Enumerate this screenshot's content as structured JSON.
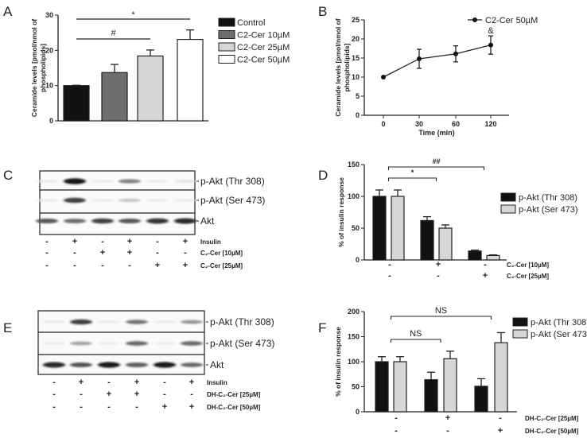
{
  "panel_labels": [
    "A",
    "B",
    "C",
    "D",
    "E",
    "F"
  ],
  "chart_data": [
    {
      "id": "A",
      "type": "bar",
      "ylabel": "Ceramide levels [pmol/nmol of phospholipids]",
      "ylim": [
        0,
        30
      ],
      "yticks": [
        0,
        10,
        20,
        30
      ],
      "categories": [
        "Control",
        "C2-Cer 10µM",
        "C2-Cer 25µM",
        "C2-Cer 50µM"
      ],
      "values": [
        10.0,
        13.7,
        18.4,
        23.1
      ],
      "errors": [
        0.1,
        2.3,
        1.7,
        2.7
      ],
      "colors": [
        "#111111",
        "#6e6e6e",
        "#d6d6d6",
        "#ffffff"
      ],
      "legend": "right",
      "annotations": [
        {
          "text": "*",
          "from": "Control",
          "to": "C2-Cer 50µM"
        },
        {
          "text": "#",
          "from": "Control",
          "to": "C2-Cer 25µM"
        }
      ]
    },
    {
      "id": "B",
      "type": "line",
      "xlabel": "Time (min)",
      "ylabel": "Ceramide levels [pmol/nmol of phospholipids]",
      "ylim": [
        0,
        25
      ],
      "yticks": [
        0,
        5,
        10,
        15,
        20,
        25
      ],
      "xticks": [
        "0",
        "30",
        "60",
        "120"
      ],
      "series": [
        {
          "name": "C2-Cer 50µM",
          "values": [
            10.0,
            14.8,
            16.1,
            18.4
          ],
          "errors": [
            0.1,
            2.5,
            2.1,
            2.4
          ]
        }
      ],
      "legend": "top-right",
      "annotations": [
        {
          "text": "&",
          "at": "120"
        }
      ]
    },
    {
      "id": "D",
      "type": "bar",
      "ylabel": "% of insulin response",
      "ylim": [
        0,
        150
      ],
      "yticks": [
        0,
        50,
        100,
        150
      ],
      "series": [
        {
          "name": "p-Akt (Thr 308)",
          "color": "#111111",
          "values": [
            100,
            62,
            14
          ],
          "errors": [
            10,
            6,
            1.5
          ]
        },
        {
          "name": "p-Akt (Ser 473)",
          "color": "#d6d6d6",
          "values": [
            100,
            50,
            7
          ],
          "errors": [
            10,
            5,
            1
          ]
        }
      ],
      "conditions": [
        {
          "label": "C₂-Cer [10µM]",
          "signs": [
            "-",
            "+",
            "-"
          ]
        },
        {
          "label": "C₂-Cer [25µM]",
          "signs": [
            "-",
            "-",
            "+"
          ]
        }
      ],
      "legend": "right",
      "annotations": [
        {
          "text": "##",
          "from": 0,
          "to": 2
        },
        {
          "text": "*",
          "from": 0,
          "to": 1
        }
      ]
    },
    {
      "id": "F",
      "type": "bar",
      "ylabel": "% of insulin response",
      "ylim": [
        0,
        200
      ],
      "yticks": [
        0,
        50,
        100,
        150,
        200
      ],
      "series": [
        {
          "name": "p-Akt (Thr 308)",
          "color": "#111111",
          "values": [
            100,
            64,
            51
          ],
          "errors": [
            10,
            15,
            15
          ]
        },
        {
          "name": "p-Akt (Ser 473)",
          "color": "#d6d6d6",
          "values": [
            100,
            106,
            138
          ],
          "errors": [
            10,
            15,
            20
          ]
        }
      ],
      "conditions": [
        {
          "label": "DH-C₂-Cer [25µM]",
          "signs": [
            "-",
            "+",
            "-"
          ]
        },
        {
          "label": "DH-C₂-Cer [50µM]",
          "signs": [
            "-",
            "-",
            "+"
          ]
        }
      ],
      "legend": "right",
      "annotations": [
        {
          "text": "NS",
          "from": 0,
          "to": 2
        },
        {
          "text": "NS",
          "from": 0,
          "to": 1
        }
      ]
    }
  ],
  "blots": [
    {
      "id": "C",
      "rows": [
        {
          "label": "p-Akt (Thr 308)",
          "intensity": [
            0.02,
            1.0,
            0.02,
            0.5,
            0.02,
            0.05
          ]
        },
        {
          "label": "p-Akt (Ser 473)",
          "intensity": [
            0.02,
            0.8,
            0.02,
            0.2,
            0.02,
            0.02
          ]
        },
        {
          "label": "Akt",
          "intensity": [
            0.7,
            0.6,
            0.8,
            0.7,
            0.85,
            0.9
          ]
        }
      ],
      "conditions": [
        {
          "label": "Insulin",
          "signs": [
            "-",
            "+",
            "-",
            "+",
            "-",
            "+"
          ]
        },
        {
          "label": "C₂-Cer [10µM]",
          "signs": [
            "-",
            "-",
            "+",
            "+",
            "-",
            "-"
          ]
        },
        {
          "label": "C₂-Cer [25µM]",
          "signs": [
            "-",
            "-",
            "-",
            "-",
            "+",
            "+"
          ]
        }
      ]
    },
    {
      "id": "E",
      "rows": [
        {
          "label": "p-Akt (Thr 308)",
          "intensity": [
            0.02,
            0.8,
            0.02,
            0.55,
            0.02,
            0.4
          ]
        },
        {
          "label": "p-Akt (Ser 473)",
          "intensity": [
            0.02,
            0.35,
            0.02,
            0.6,
            0.02,
            0.6
          ]
        },
        {
          "label": "Akt",
          "intensity": [
            0.9,
            0.7,
            0.95,
            0.65,
            0.95,
            0.6
          ]
        }
      ],
      "conditions": [
        {
          "label": "Insulin",
          "signs": [
            "-",
            "+",
            "-",
            "+",
            "-",
            "+"
          ]
        },
        {
          "label": "DH-C₂-Cer [25µM]",
          "signs": [
            "-",
            "-",
            "+",
            "+",
            "-",
            "-"
          ]
        },
        {
          "label": "DH-C₂-Cer [50µM]",
          "signs": [
            "-",
            "-",
            "-",
            "-",
            "+",
            "+"
          ]
        }
      ]
    }
  ]
}
